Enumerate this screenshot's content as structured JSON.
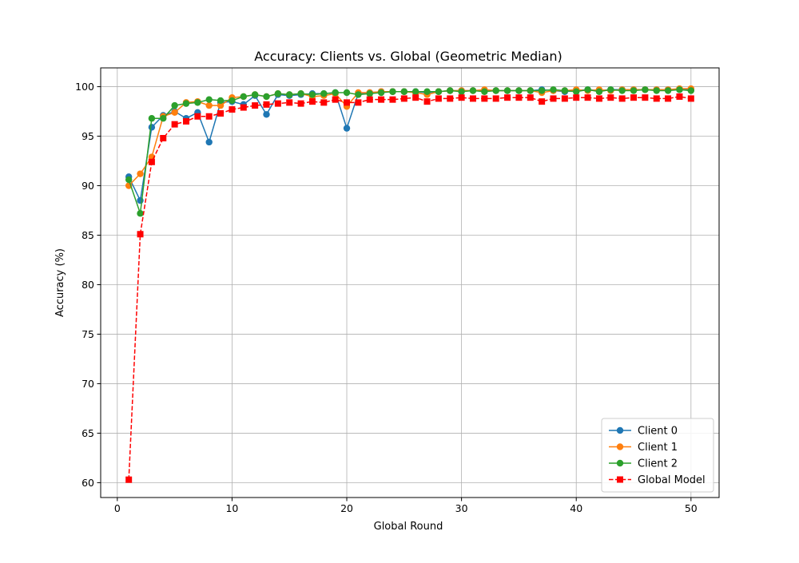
{
  "chart_data": {
    "type": "line",
    "title": "Accuracy: Clients vs. Global (Geometric Median)",
    "xlabel": "Global Round",
    "ylabel": "Accuracy (%)",
    "xlim": [
      -1.45,
      52.45
    ],
    "ylim": [
      58.5,
      101.9
    ],
    "xticks": [
      0,
      10,
      20,
      30,
      40,
      50
    ],
    "yticks": [
      60,
      65,
      70,
      75,
      80,
      85,
      90,
      95,
      100
    ],
    "grid": true,
    "legend_position": "lower-right",
    "x": [
      1,
      2,
      3,
      4,
      5,
      6,
      7,
      8,
      9,
      10,
      11,
      12,
      13,
      14,
      15,
      16,
      17,
      18,
      19,
      20,
      21,
      22,
      23,
      24,
      25,
      26,
      27,
      28,
      29,
      30,
      31,
      32,
      33,
      34,
      35,
      36,
      37,
      38,
      39,
      40,
      41,
      42,
      43,
      44,
      45,
      46,
      47,
      48,
      49,
      50
    ],
    "series": [
      {
        "name": "Client 0",
        "color": "#1f77b4",
        "marker": "circle",
        "linestyle": "solid",
        "values": [
          90.9,
          88.5,
          95.9,
          97.1,
          97.5,
          96.8,
          97.4,
          94.4,
          98.4,
          98.5,
          98.2,
          99.1,
          97.2,
          99.2,
          99.1,
          99.2,
          99.3,
          99.3,
          99.4,
          95.8,
          99.3,
          99.4,
          99.5,
          99.5,
          99.5,
          99.5,
          99.4,
          99.5,
          99.6,
          99.6,
          99.6,
          99.6,
          99.6,
          99.6,
          99.6,
          99.6,
          99.7,
          99.6,
          99.5,
          99.6,
          99.7,
          99.6,
          99.7,
          99.7,
          99.7,
          99.7,
          99.7,
          99.7,
          99.7,
          99.7
        ]
      },
      {
        "name": "Client 1",
        "color": "#ff7f0e",
        "marker": "circle",
        "linestyle": "solid",
        "values": [
          90.0,
          91.2,
          92.9,
          97.0,
          97.4,
          98.4,
          98.5,
          98.1,
          98.1,
          98.9,
          99.0,
          99.2,
          99.0,
          99.3,
          99.2,
          99.3,
          99.0,
          99.1,
          99.3,
          98.0,
          99.4,
          99.4,
          99.5,
          99.5,
          99.5,
          99.4,
          99.2,
          99.5,
          99.6,
          99.6,
          99.6,
          99.7,
          99.6,
          99.6,
          99.6,
          99.6,
          99.4,
          99.6,
          99.6,
          99.7,
          99.6,
          99.7,
          99.6,
          99.7,
          99.7,
          99.7,
          99.7,
          99.7,
          99.8,
          99.8
        ]
      },
      {
        "name": "Client 2",
        "color": "#2ca02c",
        "marker": "circle",
        "linestyle": "solid",
        "values": [
          90.6,
          87.2,
          96.8,
          96.8,
          98.1,
          98.3,
          98.4,
          98.7,
          98.6,
          98.6,
          99.0,
          99.2,
          99.0,
          99.3,
          99.2,
          99.3,
          99.2,
          99.3,
          99.4,
          99.4,
          99.2,
          99.3,
          99.4,
          99.5,
          99.5,
          99.5,
          99.5,
          99.5,
          99.6,
          99.5,
          99.6,
          99.5,
          99.6,
          99.6,
          99.6,
          99.6,
          99.6,
          99.7,
          99.6,
          99.5,
          99.7,
          99.5,
          99.7,
          99.6,
          99.6,
          99.7,
          99.6,
          99.6,
          99.7,
          99.6
        ]
      },
      {
        "name": "Global Model",
        "color": "#ff0000",
        "marker": "square",
        "linestyle": "dashed",
        "values": [
          60.3,
          85.1,
          92.4,
          94.8,
          96.2,
          96.5,
          97.0,
          97.0,
          97.3,
          97.7,
          97.9,
          98.1,
          98.2,
          98.3,
          98.4,
          98.3,
          98.5,
          98.4,
          98.7,
          98.4,
          98.4,
          98.7,
          98.7,
          98.7,
          98.8,
          98.9,
          98.5,
          98.8,
          98.8,
          98.9,
          98.8,
          98.8,
          98.8,
          98.9,
          98.9,
          98.9,
          98.5,
          98.8,
          98.8,
          98.9,
          98.9,
          98.8,
          98.9,
          98.8,
          98.9,
          98.9,
          98.8,
          98.8,
          99.0,
          98.8
        ]
      }
    ]
  }
}
